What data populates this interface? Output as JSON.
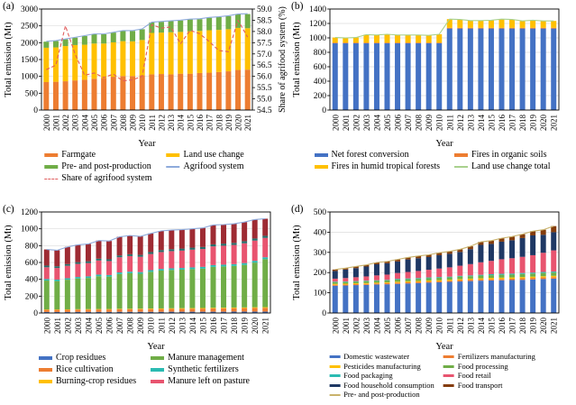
{
  "figure_title": "",
  "xlabel": "Year",
  "ylabel_left": "Total emission (Mt)",
  "years": [
    "2000",
    "2001",
    "2002",
    "2003",
    "2004",
    "2005",
    "2006",
    "2007",
    "2008",
    "2009",
    "2010",
    "2011",
    "2012",
    "2013",
    "2014",
    "2015",
    "2016",
    "2017",
    "2018",
    "2019",
    "2020",
    "2021"
  ],
  "chart_data": [
    {
      "id": "a",
      "label": "(a)",
      "type": "bar",
      "stacked": true,
      "xlabel": "Year",
      "ylabel": "Total emission (Mt)",
      "ylim": [
        0,
        3000
      ],
      "yticks": [
        0,
        500,
        1000,
        1500,
        2000,
        2500,
        3000
      ],
      "right_axis": {
        "label": "Share of agrifood system (%)",
        "lim": [
          54.5,
          59.0
        ],
        "ticks": [
          54.5,
          55.0,
          55.5,
          56.0,
          56.5,
          57.0,
          57.5,
          58.0,
          58.5,
          59.0
        ]
      },
      "series": [
        {
          "name": "Farmgate",
          "type": "bar",
          "color": "#ED7D31",
          "values": [
            830,
            840,
            855,
            880,
            900,
            930,
            950,
            990,
            1010,
            1010,
            1030,
            1060,
            1070,
            1060,
            1080,
            1080,
            1100,
            1110,
            1130,
            1150,
            1190,
            1200
          ]
        },
        {
          "name": "Land use change",
          "type": "bar",
          "color": "#FFC000",
          "values": [
            1020,
            1020,
            1045,
            1050,
            1040,
            1045,
            1025,
            1020,
            1035,
            1030,
            1050,
            1230,
            1230,
            1250,
            1240,
            1260,
            1250,
            1260,
            1250,
            1250,
            1250,
            1230
          ]
        },
        {
          "name": "Pre- and post-production",
          "type": "bar",
          "color": "#70AD47",
          "values": [
            180,
            190,
            200,
            220,
            260,
            275,
            275,
            290,
            305,
            310,
            320,
            310,
            320,
            330,
            340,
            350,
            350,
            370,
            380,
            390,
            400,
            420
          ]
        },
        {
          "name": "Agrifood system",
          "type": "line",
          "axis": "left",
          "color": "#8EAADB",
          "values": [
            2040,
            2060,
            2110,
            2160,
            2210,
            2260,
            2260,
            2310,
            2360,
            2360,
            2410,
            2610,
            2630,
            2650,
            2670,
            2700,
            2710,
            2750,
            2770,
            2800,
            2850,
            2860
          ]
        },
        {
          "name": "Share of agrifood system",
          "type": "line",
          "axis": "right",
          "dash": true,
          "color": "#E05C5C",
          "values": [
            56.3,
            56.5,
            58.25,
            57.0,
            56.05,
            56.15,
            55.95,
            56.1,
            55.8,
            55.85,
            56.0,
            58.3,
            58.15,
            58.2,
            57.45,
            58.05,
            57.9,
            57.55,
            57.15,
            57.1,
            58.5,
            57.75
          ]
        }
      ],
      "legend": [
        {
          "label": "Farmgate",
          "color": "#ED7D31",
          "swatch": "bar"
        },
        {
          "label": "Land use change",
          "color": "#FFC000",
          "swatch": "bar"
        },
        {
          "label": "Pre- and post-production",
          "color": "#70AD47",
          "swatch": "bar"
        },
        {
          "label": "Agrifood system",
          "color": "#8EAADB",
          "swatch": "line"
        },
        {
          "label": "Share of agrifood system",
          "color": "#E05C5C",
          "swatch": "dash"
        }
      ]
    },
    {
      "id": "b",
      "label": "(b)",
      "type": "bar",
      "stacked": true,
      "xlabel": "Year",
      "ylabel": "Total emission (Mt)",
      "ylim": [
        0,
        1400
      ],
      "yticks": [
        0,
        200,
        400,
        600,
        800,
        1000,
        1200,
        1400
      ],
      "series": [
        {
          "name": "Net forest conversion",
          "type": "bar",
          "color": "#4472C4",
          "values": [
            925,
            925,
            925,
            925,
            925,
            925,
            925,
            925,
            925,
            925,
            925,
            1130,
            1130,
            1130,
            1130,
            1130,
            1130,
            1130,
            1130,
            1130,
            1130,
            1130
          ]
        },
        {
          "name": "Fires in organic soils",
          "type": "bar",
          "color": "#ED7D31",
          "values": [
            10,
            10,
            10,
            10,
            10,
            10,
            10,
            10,
            10,
            10,
            10,
            10,
            10,
            10,
            10,
            10,
            10,
            10,
            10,
            10,
            10,
            10
          ]
        },
        {
          "name": "Fires in humid tropical forests",
          "type": "bar",
          "color": "#FFC000",
          "values": [
            70,
            65,
            70,
            110,
            105,
            115,
            105,
            105,
            105,
            100,
            115,
            120,
            115,
            100,
            100,
            105,
            120,
            115,
            95,
            105,
            95,
            95
          ]
        },
        {
          "name": "Land use change total",
          "type": "line",
          "axis": "left",
          "color": "#A9D18E",
          "values": [
            1005,
            1000,
            1005,
            1045,
            1040,
            1050,
            1040,
            1040,
            1040,
            1035,
            1050,
            1260,
            1255,
            1240,
            1240,
            1245,
            1260,
            1255,
            1235,
            1245,
            1235,
            1235
          ]
        }
      ],
      "legend": [
        {
          "label": "Net forest conversion",
          "color": "#4472C4",
          "swatch": "bar"
        },
        {
          "label": "Fires in organic soils",
          "color": "#ED7D31",
          "swatch": "bar"
        },
        {
          "label": "Fires in humid tropical forests",
          "color": "#FFC000",
          "swatch": "bar"
        },
        {
          "label": "Land use change total",
          "color": "#A9D18E",
          "swatch": "line"
        }
      ]
    },
    {
      "id": "c",
      "label": "(c)",
      "type": "bar",
      "stacked": true,
      "xlabel": "Year",
      "ylabel": "Total emission (Mt)",
      "ylim": [
        0,
        1200
      ],
      "yticks": [
        0,
        200,
        400,
        600,
        800,
        1000,
        1200
      ],
      "series": [
        {
          "name": "Crop residues",
          "type": "bar",
          "color": "#4472C4",
          "values": [
            12,
            12,
            12,
            13,
            13,
            13,
            13,
            14,
            14,
            14,
            14,
            14,
            15,
            15,
            15,
            15,
            15,
            15,
            16,
            16,
            16,
            16
          ]
        },
        {
          "name": "Rice cultivation",
          "type": "bar",
          "color": "#ED7D31",
          "values": [
            25,
            25,
            26,
            27,
            27,
            28,
            28,
            30,
            30,
            30,
            32,
            33,
            34,
            35,
            36,
            37,
            39,
            40,
            41,
            42,
            44,
            45
          ]
        },
        {
          "name": "Burning-crop residues",
          "type": "bar",
          "color": "#FFC000",
          "values": [
            5,
            5,
            5,
            5,
            6,
            6,
            6,
            6,
            6,
            7,
            7,
            7,
            7,
            7,
            7,
            7,
            8,
            8,
            8,
            8,
            8,
            8
          ]
        },
        {
          "name": "Manure management",
          "type": "bar",
          "color": "#70AD47",
          "values": [
            343,
            337,
            352,
            365,
            370,
            390,
            385,
            413,
            422,
            415,
            436,
            450,
            455,
            458,
            463,
            468,
            486,
            490,
            494,
            505,
            530,
            571
          ]
        },
        {
          "name": "Synthetic fertilizers",
          "type": "bar",
          "color": "#2BBBB2",
          "values": [
            18,
            18,
            18,
            18,
            19,
            19,
            19,
            19,
            19,
            20,
            20,
            20,
            20,
            20,
            21,
            21,
            21,
            21,
            21,
            22,
            22,
            22
          ]
        },
        {
          "name": "Manure left on pasture",
          "type": "bar",
          "color": "#E8546F",
          "values": [
            140,
            138,
            148,
            155,
            158,
            168,
            166,
            180,
            185,
            182,
            192,
            200,
            204,
            206,
            210,
            212,
            222,
            225,
            228,
            235,
            240,
            230
          ]
        },
        {
          "name": "unlabeled-segment-dark-teal",
          "type": "bar",
          "color": "#266E6B",
          "label_shown": false,
          "values": [
            20,
            20,
            20,
            21,
            21,
            21,
            21,
            22,
            22,
            22,
            23,
            23,
            23,
            24,
            24,
            24,
            24,
            25,
            25,
            25,
            25,
            25
          ]
        },
        {
          "name": "unlabeled-segment-dark-red",
          "type": "bar",
          "color": "#9E2B33",
          "label_shown": false,
          "values": [
            192,
            190,
            204,
            206,
            206,
            215,
            217,
            221,
            222,
            220,
            221,
            228,
            227,
            225,
            224,
            226,
            230,
            226,
            227,
            227,
            225,
            203
          ]
        },
        {
          "name": "unlabeled-total-line",
          "type": "line",
          "axis": "left",
          "color": "#8EAADB",
          "label_shown": false,
          "values": [
            755,
            745,
            785,
            810,
            820,
            860,
            855,
            905,
            920,
            910,
            945,
            975,
            985,
            990,
            1000,
            1010,
            1045,
            1050,
            1060,
            1080,
            1110,
            1120
          ]
        }
      ],
      "legend": [
        {
          "label": "Crop residues",
          "color": "#4472C4",
          "swatch": "bar"
        },
        {
          "label": "Manure management",
          "color": "#70AD47",
          "swatch": "bar"
        },
        {
          "label": "Rice cultivation",
          "color": "#ED7D31",
          "swatch": "bar"
        },
        {
          "label": "Synthetic fertilizers",
          "color": "#2BBBB2",
          "swatch": "bar"
        },
        {
          "label": "Burning-crop residues",
          "color": "#FFC000",
          "swatch": "bar"
        },
        {
          "label": "Manure left on pasture",
          "color": "#E8546F",
          "swatch": "bar"
        }
      ]
    },
    {
      "id": "d",
      "label": "(d)",
      "type": "bar",
      "stacked": true,
      "xlabel": "Year",
      "ylabel": "Total emission (Mt)",
      "ylim": [
        0,
        500
      ],
      "yticks": [
        0,
        100,
        200,
        300,
        400,
        500
      ],
      "series": [
        {
          "name": "Domestic wastewater",
          "type": "bar",
          "color": "#4472C4",
          "values": [
            135,
            136,
            138,
            139,
            141,
            142,
            144,
            146,
            148,
            150,
            152,
            154,
            156,
            158,
            160,
            161,
            162,
            163,
            164,
            166,
            168,
            170
          ]
        },
        {
          "name": "Fertilizers manufacturing",
          "type": "bar",
          "color": "#ED7D31",
          "values": [
            5,
            5,
            5,
            5,
            5,
            6,
            6,
            6,
            6,
            6,
            6,
            6,
            7,
            7,
            7,
            7,
            7,
            7,
            8,
            8,
            8,
            8
          ]
        },
        {
          "name": "Pesticides manufacturing",
          "type": "bar",
          "color": "#FFC000",
          "values": [
            4,
            4,
            4,
            4,
            4,
            4,
            5,
            5,
            5,
            5,
            5,
            5,
            5,
            5,
            5,
            6,
            6,
            6,
            6,
            6,
            6,
            6
          ]
        },
        {
          "name": "Food processing",
          "type": "bar",
          "color": "#70AD47",
          "values": [
            8,
            8,
            8,
            9,
            9,
            9,
            10,
            10,
            10,
            11,
            11,
            11,
            12,
            12,
            13,
            13,
            14,
            14,
            15,
            15,
            16,
            16
          ]
        },
        {
          "name": "Food packaging",
          "type": "bar",
          "color": "#2BBBB2",
          "values": [
            3,
            3,
            3,
            3,
            3,
            3,
            4,
            4,
            4,
            4,
            4,
            4,
            4,
            4,
            4,
            5,
            5,
            5,
            5,
            5,
            5,
            5
          ]
        },
        {
          "name": "Food retail",
          "type": "bar",
          "color": "#E8546F",
          "values": [
            15,
            17,
            19,
            21,
            24,
            26,
            29,
            32,
            35,
            38,
            42,
            46,
            50,
            56,
            62,
            66,
            72,
            76,
            80,
            86,
            95,
            105
          ]
        },
        {
          "name": "Food household consumption",
          "type": "bar",
          "color": "#1F3864",
          "values": [
            38,
            42,
            45,
            49,
            55,
            56,
            57,
            62,
            63,
            63,
            66,
            67,
            68,
            74,
            86,
            84,
            87,
            89,
            93,
            98,
            89,
            90
          ]
        },
        {
          "name": "Food transport",
          "type": "bar",
          "color": "#843C0C",
          "values": [
            7,
            7,
            8,
            8,
            9,
            9,
            10,
            10,
            11,
            11,
            12,
            12,
            13,
            14,
            15,
            16,
            17,
            18,
            19,
            21,
            25,
            30
          ]
        },
        {
          "name": "Pre- and post-production",
          "type": "line",
          "axis": "left",
          "color": "#C9B26B",
          "values": [
            215,
            222,
            230,
            238,
            250,
            255,
            265,
            275,
            282,
            288,
            298,
            305,
            315,
            330,
            352,
            358,
            370,
            378,
            390,
            405,
            412,
            430
          ]
        }
      ],
      "legend": [
        {
          "label": "Domestic wastewater",
          "color": "#4472C4",
          "swatch": "bar"
        },
        {
          "label": "Fertilizers manufacturing",
          "color": "#ED7D31",
          "swatch": "bar"
        },
        {
          "label": "Pesticides manufacturing",
          "color": "#FFC000",
          "swatch": "bar"
        },
        {
          "label": "Food processing",
          "color": "#70AD47",
          "swatch": "bar"
        },
        {
          "label": "Food packaging",
          "color": "#2BBBB2",
          "swatch": "bar"
        },
        {
          "label": "Food retail",
          "color": "#E8546F",
          "swatch": "bar"
        },
        {
          "label": "Food household consumption",
          "color": "#1F3864",
          "swatch": "bar"
        },
        {
          "label": "Food transport",
          "color": "#843C0C",
          "swatch": "bar"
        },
        {
          "label": "Pre- and post-production",
          "color": "#C9B26B",
          "swatch": "line"
        }
      ]
    }
  ]
}
